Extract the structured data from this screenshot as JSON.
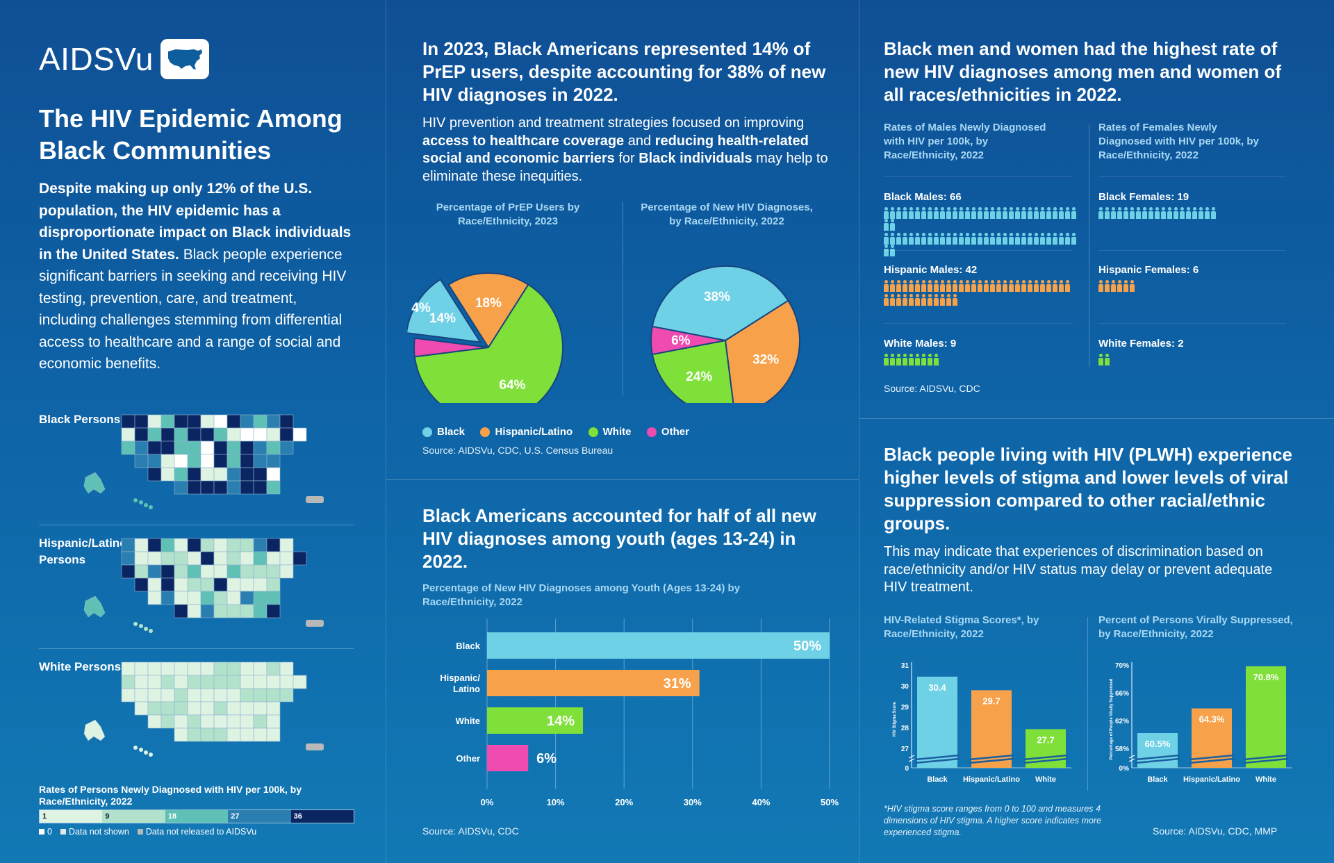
{
  "brand": {
    "name": "AIDSVu"
  },
  "left": {
    "title": "The HIV Epidemic Among Black Communities",
    "intro_bold": "Despite making up only 12% of the U.S. population, the HIV epidemic has a disproportionate impact on Black individuals in the United States.",
    "intro_rest": " Black people experience significant barriers in seeking and receiving HIV testing, prevention, care, and treatment, including challenges stemming from differential access to healthcare and a range of social and economic benefits.",
    "maps": [
      {
        "label": "Black Persons"
      },
      {
        "label": "Hispanic/Latino Persons"
      },
      {
        "label": "White Persons"
      }
    ],
    "scale_title": "Rates of Persons Newly Diagnosed with HIV per 100k, by Race/Ethnicity, 2022",
    "scale": [
      {
        "value": "1",
        "color": "#dff3e3"
      },
      {
        "value": "9",
        "color": "#b2e2cc"
      },
      {
        "value": "18",
        "color": "#5fc0b5"
      },
      {
        "value": "27",
        "color": "#2a7fb0"
      },
      {
        "value": "36",
        "color": "#0b2563"
      }
    ],
    "scale_legend": [
      {
        "label": "0",
        "color": "#ffffff"
      },
      {
        "label": "Data not shown",
        "color": "#e8e8e8"
      },
      {
        "label": "Data not released to AIDSVu",
        "color": "#b8b8b8"
      }
    ]
  },
  "prep": {
    "headline": "In 2023, Black Americans represented 14% of PrEP users, despite accounting for 38% of new HIV diagnoses in 2022.",
    "body_parts": [
      {
        "t": "HIV prevention and treatment strategies focused on improving ",
        "b": false
      },
      {
        "t": "access to healthcare coverage",
        "b": true
      },
      {
        "t": " and ",
        "b": false
      },
      {
        "t": "reducing health-related social and economic barriers",
        "b": true
      },
      {
        "t": " for ",
        "b": false
      },
      {
        "t": "Black individuals",
        "b": true
      },
      {
        "t": " may help to eliminate these inequities.",
        "b": false
      }
    ],
    "legend": [
      {
        "label": "Black",
        "color": "#6fd1e6"
      },
      {
        "label": "Hispanic/Latino",
        "color": "#f7a24a"
      },
      {
        "label": "White",
        "color": "#7fe03a"
      },
      {
        "label": "Other",
        "color": "#f04bb0"
      }
    ],
    "source": "Source: AIDSVu, CDC, U.S. Census Bureau"
  },
  "youth": {
    "headline": "Black Americans accounted for half of all new HIV diagnoses among youth (ages 13-24) in 2022.",
    "source": "Source: AIDSVu, CDC"
  },
  "rates": {
    "headline": "Black men and women had the highest rate of new HIV diagnoses among men and women of all races/ethnicities in 2022.",
    "males_title": "Rates of Males Newly Diagnosed with HIV per 100k, by Race/Ethnicity, 2022",
    "females_title": "Rates of Females Newly Diagnosed with HIV per 100k, by Race/Ethnicity, 2022",
    "males": [
      {
        "label": "Black Males: 66",
        "count": 66,
        "color": "#6fd1e6"
      },
      {
        "label": "Hispanic Males: 42",
        "count": 42,
        "color": "#f7a24a"
      },
      {
        "label": "White Males: 9",
        "count": 9,
        "color": "#7fe03a"
      }
    ],
    "females": [
      {
        "label": "Black Females: 19",
        "count": 19,
        "color": "#6fd1e6"
      },
      {
        "label": "Hispanic Females: 6",
        "count": 6,
        "color": "#f7a24a"
      },
      {
        "label": "White Females: 2",
        "count": 2,
        "color": "#7fe03a"
      }
    ],
    "source": "Source: AIDSVu, CDC"
  },
  "stigma": {
    "headline": "Black people living with HIV (PLWH) experience higher levels of stigma and lower levels of viral suppression compared to other racial/ethnic groups.",
    "body": "This may indicate that experiences of discrimination based on race/ethnicity and/or HIV status may delay or prevent adequate HIV treatment.",
    "footnote": "*HIV stigma score ranges from 0 to 100 and measures 4 dimensions of HIV stigma. A higher score indicates more experienced stigma.",
    "source": "Source: AIDSVu, CDC, MMP"
  },
  "chart_data": [
    {
      "type": "pie",
      "title": "Percentage of PrEP Users by Race/Ethnicity, 2023",
      "categories": [
        "Black",
        "Hispanic/Latino",
        "White",
        "Other"
      ],
      "values": [
        14,
        18,
        64,
        4
      ],
      "labels": [
        "14%",
        "18%",
        "64%",
        "4%"
      ],
      "colors": [
        "#6fd1e6",
        "#f7a24a",
        "#7fe03a",
        "#f04bb0"
      ]
    },
    {
      "type": "pie",
      "title": "Percentage of New HIV Diagnoses, by Race/Ethnicity, 2022",
      "categories": [
        "Black",
        "Hispanic/Latino",
        "White",
        "Other"
      ],
      "values": [
        38,
        32,
        24,
        6
      ],
      "labels": [
        "38%",
        "32%",
        "24%",
        "6%"
      ],
      "colors": [
        "#6fd1e6",
        "#f7a24a",
        "#7fe03a",
        "#f04bb0"
      ]
    },
    {
      "type": "bar",
      "orientation": "horizontal",
      "title": "Percentage of New HIV Diagnoses among Youth (Ages 13-24) by Race/Ethnicity, 2022",
      "categories": [
        "Black",
        "Hispanic/ Latino",
        "White",
        "Other"
      ],
      "values": [
        50,
        31,
        14,
        6
      ],
      "labels": [
        "50%",
        "31%",
        "14%",
        "6%"
      ],
      "colors": [
        "#6fd1e6",
        "#f7a24a",
        "#7fe03a",
        "#f04bb0"
      ],
      "xlim": [
        0,
        50
      ],
      "xticks": [
        "0%",
        "10%",
        "20%",
        "30%",
        "40%",
        "50%"
      ],
      "grid": true
    },
    {
      "type": "bar",
      "title": "HIV-Related Stigma Scores*, by Race/Ethnicity, 2022",
      "ylabel": "HIV Stigma Score",
      "categories": [
        "Black",
        "Hispanic/Latino",
        "White"
      ],
      "values": [
        30.4,
        29.7,
        27.7
      ],
      "labels": [
        "30.4",
        "29.7",
        "27.7"
      ],
      "colors": [
        "#6fd1e6",
        "#f7a24a",
        "#7fe03a"
      ],
      "ylim": [
        26,
        31
      ],
      "yticks": [
        "31",
        "30",
        "29",
        "28",
        "27",
        "0"
      ],
      "axis_break": true
    },
    {
      "type": "bar",
      "title": "Percent of Persons Virally Suppressed, by Race/Ethnicity, 2022",
      "ylabel": "Percentage of People Virally Suppressed",
      "categories": [
        "Black",
        "Hispanic/Latino",
        "White"
      ],
      "values": [
        60.5,
        64.3,
        70.8
      ],
      "labels": [
        "60.5%",
        "64.3%",
        "70.8%"
      ],
      "colors": [
        "#6fd1e6",
        "#f7a24a",
        "#7fe03a"
      ],
      "ylim": [
        56,
        71
      ],
      "yticks": [
        "70%",
        "66%",
        "62%",
        "58%",
        "0%"
      ],
      "axis_break": true
    }
  ]
}
